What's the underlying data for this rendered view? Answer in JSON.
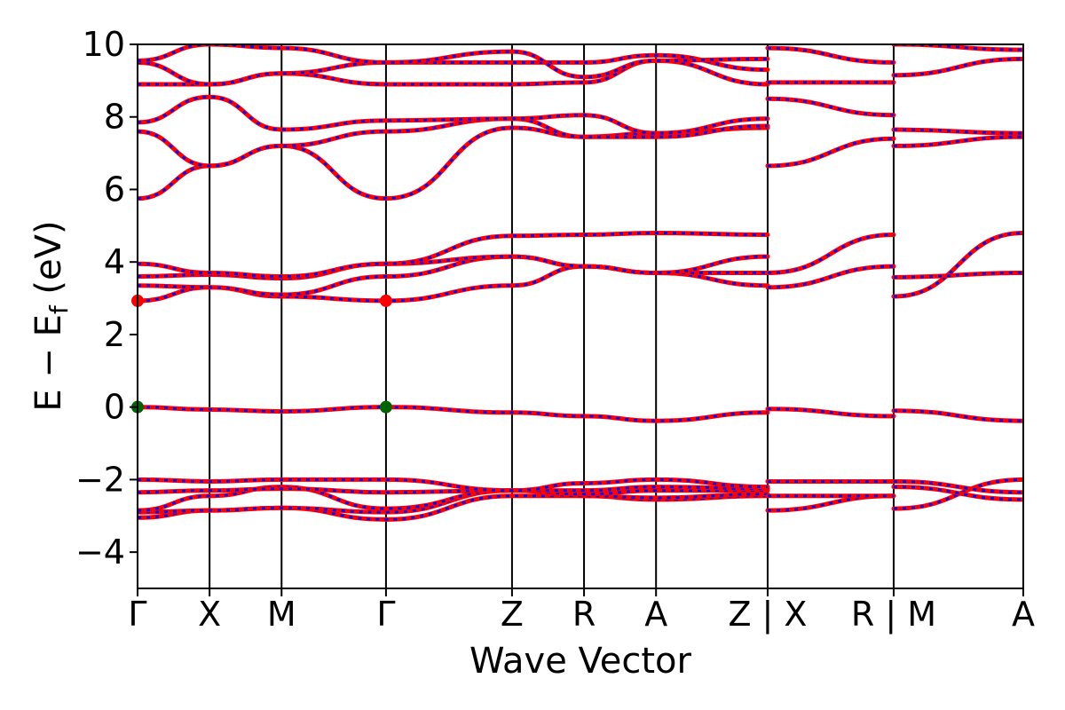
{
  "chart_data": {
    "type": "line",
    "title": "",
    "xlabel": "Wave Vector",
    "ylabel_main": "E − E",
    "ylabel_sub": "f",
    "ylabel_unit": " (eV)",
    "ylim": [
      -5,
      10
    ],
    "yticks": [
      -4,
      -2,
      0,
      2,
      4,
      6,
      8,
      10
    ],
    "ytick_labels": [
      "−4",
      "−2",
      "0",
      "2",
      "4",
      "6",
      "8",
      "10"
    ],
    "xlim": [
      0,
      12.3
    ],
    "path_points": [
      {
        "label": "Γ",
        "x": 0
      },
      {
        "label": "X",
        "x": 1.0
      },
      {
        "label": "M",
        "x": 2.0
      },
      {
        "label": "Γ",
        "x": 3.45
      },
      {
        "label": "Z",
        "x": 5.2
      },
      {
        "label": "R",
        "x": 6.2
      },
      {
        "label": "A",
        "x": 7.2
      },
      {
        "label": "Z | X",
        "x": 8.75
      },
      {
        "label": "R | M",
        "x": 10.5
      },
      {
        "label": "A",
        "x": 12.3
      }
    ],
    "segment_breaks": [
      8.75,
      10.5
    ],
    "line_color_1": "#ff0000",
    "line_color_2": "#0000ff",
    "band_edge_markers": [
      {
        "x": 0,
        "y": 2.93,
        "color": "#ff0000"
      },
      {
        "x": 3.45,
        "y": 2.93,
        "color": "#ff0000"
      },
      {
        "x": 0,
        "y": 0.0,
        "color": "#006400"
      },
      {
        "x": 3.45,
        "y": 0.0,
        "color": "#006400"
      }
    ],
    "series": [
      {
        "points": [
          [
            0,
            -3.05
          ],
          [
            1,
            -2.85
          ],
          [
            2,
            -2.78
          ],
          [
            3.45,
            -3.1
          ],
          [
            5.2,
            -2.45
          ],
          [
            6.2,
            -2.45
          ],
          [
            7.2,
            -2.55
          ],
          [
            8.75,
            -2.45
          ]
        ]
      },
      {
        "points": [
          [
            0,
            -2.9
          ],
          [
            1,
            -2.85
          ],
          [
            2,
            -2.78
          ],
          [
            3.45,
            -2.9
          ],
          [
            5.2,
            -2.3
          ],
          [
            6.2,
            -2.45
          ],
          [
            7.2,
            -2.5
          ],
          [
            8.75,
            -2.4
          ]
        ]
      },
      {
        "points": [
          [
            0,
            -2.85
          ],
          [
            1,
            -2.45
          ],
          [
            2,
            -2.2
          ],
          [
            3.45,
            -2.8
          ],
          [
            5.2,
            -2.3
          ],
          [
            6.2,
            -2.4
          ],
          [
            7.2,
            -2.3
          ],
          [
            8.75,
            -2.3
          ]
        ]
      },
      {
        "points": [
          [
            0,
            -2.35
          ],
          [
            1,
            -2.3
          ],
          [
            2,
            -2.25
          ],
          [
            3.45,
            -2.35
          ],
          [
            5.2,
            -2.3
          ],
          [
            6.2,
            -2.3
          ],
          [
            7.2,
            -2.2
          ],
          [
            8.75,
            -2.25
          ]
        ]
      },
      {
        "points": [
          [
            0,
            -2.0
          ],
          [
            1,
            -2.05
          ],
          [
            2,
            -2.0
          ],
          [
            3.45,
            -2.0
          ],
          [
            5.2,
            -2.3
          ],
          [
            6.2,
            -2.1
          ],
          [
            7.2,
            -2.0
          ],
          [
            8.75,
            -2.2
          ]
        ]
      },
      {
        "points": [
          [
            0,
            0.0
          ],
          [
            1,
            -0.07
          ],
          [
            2,
            -0.12
          ],
          [
            3.45,
            0.0
          ],
          [
            5.2,
            -0.15
          ],
          [
            6.2,
            -0.25
          ],
          [
            7.2,
            -0.38
          ],
          [
            8.75,
            -0.15
          ]
        ]
      },
      {
        "points": [
          [
            0,
            2.93
          ],
          [
            1,
            3.3
          ],
          [
            2,
            3.05
          ],
          [
            3.45,
            2.93
          ],
          [
            5.2,
            3.35
          ],
          [
            6.2,
            3.88
          ],
          [
            7.2,
            3.7
          ],
          [
            8.75,
            3.35
          ]
        ]
      },
      {
        "points": [
          [
            0,
            3.35
          ],
          [
            1,
            3.3
          ],
          [
            2,
            3.1
          ],
          [
            3.45,
            3.6
          ],
          [
            5.2,
            4.15
          ],
          [
            6.2,
            3.88
          ],
          [
            7.2,
            3.7
          ],
          [
            8.75,
            3.7
          ]
        ]
      },
      {
        "points": [
          [
            0,
            3.6
          ],
          [
            1,
            3.65
          ],
          [
            2,
            3.55
          ],
          [
            3.45,
            3.95
          ],
          [
            5.2,
            4.15
          ],
          [
            6.2,
            3.88
          ],
          [
            7.2,
            3.7
          ],
          [
            8.75,
            4.15
          ]
        ]
      },
      {
        "points": [
          [
            0,
            3.95
          ],
          [
            1,
            3.7
          ],
          [
            2,
            3.6
          ],
          [
            3.45,
            3.95
          ],
          [
            5.2,
            4.72
          ],
          [
            6.2,
            4.75
          ],
          [
            7.2,
            4.8
          ],
          [
            8.75,
            4.75
          ]
        ]
      },
      {
        "points": [
          [
            0,
            5.75
          ],
          [
            1,
            6.65
          ],
          [
            2,
            7.2
          ],
          [
            3.45,
            5.75
          ],
          [
            5.2,
            7.7
          ],
          [
            6.2,
            7.45
          ],
          [
            7.2,
            7.55
          ],
          [
            8.75,
            7.7
          ]
        ]
      },
      {
        "points": [
          [
            0,
            7.6
          ],
          [
            1,
            6.65
          ],
          [
            2,
            7.2
          ],
          [
            3.45,
            7.6
          ],
          [
            5.2,
            7.95
          ],
          [
            6.2,
            7.45
          ],
          [
            7.2,
            7.45
          ],
          [
            8.75,
            7.75
          ]
        ]
      },
      {
        "points": [
          [
            0,
            7.85
          ],
          [
            1,
            8.55
          ],
          [
            2,
            7.65
          ],
          [
            3.45,
            7.9
          ],
          [
            5.2,
            7.95
          ],
          [
            6.2,
            8.05
          ],
          [
            7.2,
            7.55
          ],
          [
            8.75,
            7.95
          ]
        ]
      },
      {
        "points": [
          [
            0,
            8.9
          ],
          [
            1,
            8.9
          ],
          [
            2,
            9.2
          ],
          [
            3.45,
            8.9
          ],
          [
            5.2,
            8.9
          ],
          [
            6.2,
            8.95
          ],
          [
            7.2,
            9.55
          ],
          [
            8.75,
            8.9
          ]
        ]
      },
      {
        "points": [
          [
            0,
            9.5
          ],
          [
            1,
            8.9
          ],
          [
            2,
            9.2
          ],
          [
            3.45,
            9.5
          ],
          [
            5.2,
            9.5
          ],
          [
            6.2,
            9.5
          ],
          [
            7.2,
            9.7
          ],
          [
            8.75,
            9.3
          ]
        ]
      },
      {
        "points": [
          [
            0,
            9.55
          ],
          [
            1,
            10.0
          ],
          [
            2,
            9.9
          ],
          [
            3.45,
            9.5
          ],
          [
            5.2,
            9.8
          ],
          [
            6.2,
            9.1
          ],
          [
            7.2,
            9.55
          ],
          [
            8.75,
            9.6
          ]
        ]
      },
      {
        "points": [
          [
            8.75,
            -2.85
          ],
          [
            10.5,
            -2.45
          ]
        ]
      },
      {
        "points": [
          [
            8.75,
            -2.45
          ],
          [
            10.5,
            -2.45
          ]
        ]
      },
      {
        "points": [
          [
            8.75,
            -2.05
          ],
          [
            10.5,
            -2.05
          ]
        ]
      },
      {
        "points": [
          [
            8.75,
            -0.05
          ],
          [
            10.5,
            -0.25
          ]
        ]
      },
      {
        "points": [
          [
            8.75,
            3.3
          ],
          [
            10.5,
            3.88
          ]
        ]
      },
      {
        "points": [
          [
            8.75,
            3.7
          ],
          [
            10.5,
            4.75
          ]
        ]
      },
      {
        "points": [
          [
            8.75,
            6.65
          ],
          [
            10.5,
            7.4
          ]
        ]
      },
      {
        "points": [
          [
            8.75,
            8.5
          ],
          [
            10.5,
            8.05
          ]
        ]
      },
      {
        "points": [
          [
            8.75,
            8.95
          ],
          [
            10.5,
            8.95
          ]
        ]
      },
      {
        "points": [
          [
            8.75,
            9.9
          ],
          [
            10.5,
            9.5
          ]
        ]
      },
      {
        "points": [
          [
            10.5,
            -2.8
          ],
          [
            12.3,
            -2.0
          ]
        ]
      },
      {
        "points": [
          [
            10.5,
            -2.2
          ],
          [
            12.3,
            -2.55
          ]
        ]
      },
      {
        "points": [
          [
            10.5,
            -2.05
          ],
          [
            12.3,
            -2.35
          ]
        ]
      },
      {
        "points": [
          [
            10.5,
            -0.1
          ],
          [
            12.3,
            -0.38
          ]
        ]
      },
      {
        "points": [
          [
            10.5,
            3.05
          ],
          [
            12.3,
            4.8
          ]
        ]
      },
      {
        "points": [
          [
            10.5,
            3.58
          ],
          [
            12.3,
            3.7
          ]
        ]
      },
      {
        "points": [
          [
            10.5,
            7.2
          ],
          [
            12.3,
            7.45
          ]
        ]
      },
      {
        "points": [
          [
            10.5,
            7.65
          ],
          [
            12.3,
            7.55
          ]
        ]
      },
      {
        "points": [
          [
            10.5,
            9.15
          ],
          [
            12.3,
            9.6
          ]
        ]
      },
      {
        "points": [
          [
            10.5,
            10.0
          ],
          [
            12.3,
            9.85
          ]
        ]
      }
    ]
  }
}
